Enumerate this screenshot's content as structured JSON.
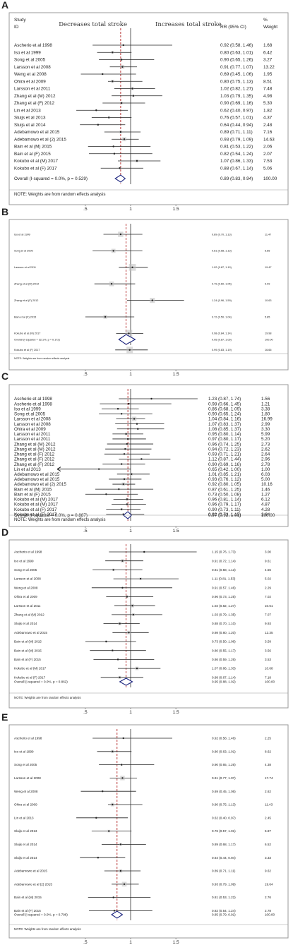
{
  "chart_data": [
    {
      "type": "forest",
      "panel_label": "A",
      "header": {
        "study": "Study",
        "id": "ID",
        "left": "Decreases total stroke",
        "right": "Increases total stroke",
        "rr": "RR (95% CI)",
        "pct": "%",
        "weight": "Weight"
      },
      "xlim": [
        0.22,
        1.78
      ],
      "xticks": [
        ".5",
        "1",
        "1.5"
      ],
      "xtick_values": [
        0.5,
        1,
        1.5
      ],
      "overall_line": 0.89,
      "rows": [
        {
          "study": "Ascherio et al 1998",
          "rr": 0.92,
          "lo": 0.58,
          "hi": 1.46,
          "ci": "0.92 (0.58, 1.46)",
          "weight": "1.68"
        },
        {
          "study": "Iso et al 1999",
          "rr": 0.8,
          "lo": 0.63,
          "hi": 1.01,
          "ci": "0.80 (0.63, 1.01)",
          "weight": "6.42"
        },
        {
          "study": "Song et al 2005",
          "rr": 0.9,
          "lo": 0.65,
          "hi": 1.26,
          "ci": "0.90 (0.65, 1.26)",
          "weight": "3.27"
        },
        {
          "study": "Larsson et al 2008",
          "rr": 0.91,
          "lo": 0.77,
          "hi": 1.07,
          "ci": "0.91 (0.77, 1.07)",
          "weight": "13.22"
        },
        {
          "study": "Weng et al 2008",
          "rr": 0.69,
          "lo": 0.45,
          "hi": 1.06,
          "ci": "0.69 (0.45, 1.06)",
          "weight": "1.95"
        },
        {
          "study": "Ohira et al 2009",
          "rr": 0.8,
          "lo": 0.75,
          "hi": 1.13,
          "ci": "0.80 (0.75, 1.13)",
          "weight": "8.51"
        },
        {
          "study": "Larsson et al 2011",
          "rr": 1.02,
          "lo": 0.82,
          "hi": 1.27,
          "ci": "1.02 (0.82, 1.27)",
          "weight": "7.48"
        },
        {
          "study": "Zhang et al (M) 2012",
          "rr": 1.03,
          "lo": 0.79,
          "hi": 1.35,
          "ci": "1.03 (0.79, 1.35)",
          "weight": "4.98"
        },
        {
          "study": "Zhang et al (F) 2012",
          "rr": 0.9,
          "lo": 0.69,
          "hi": 1.16,
          "ci": "0.90 (0.69, 1.16)",
          "weight": "5.30"
        },
        {
          "study": "Lin et al 2013",
          "rr": 0.62,
          "lo": 0.4,
          "hi": 0.97,
          "ci": "0.62 (0.40, 0.97)",
          "weight": "1.82"
        },
        {
          "study": "Sluijs et al 2013",
          "rr": 0.76,
          "lo": 0.57,
          "hi": 1.01,
          "ci": "0.76 (0.57, 1.01)",
          "weight": "4.37"
        },
        {
          "study": "Sluijs et al 2014",
          "rr": 0.64,
          "lo": 0.44,
          "hi": 0.94,
          "ci": "0.64 (0.44, 0.94)",
          "weight": "2.48"
        },
        {
          "study": "Adebamowo et al 2015",
          "rr": 0.89,
          "lo": 0.71,
          "hi": 1.11,
          "ci": "0.89 (0.71, 1.11)",
          "weight": "7.16"
        },
        {
          "study": "Adebamowo et al (2) 2015",
          "rr": 0.93,
          "lo": 0.79,
          "hi": 1.09,
          "ci": "0.93 (0.79, 1.09)",
          "weight": "14.63"
        },
        {
          "study": "Bain et al (M) 2015",
          "rr": 0.81,
          "lo": 0.53,
          "hi": 1.22,
          "ci": "0.81 (0.53, 1.22)",
          "weight": "2.06"
        },
        {
          "study": "Bain et al (F) 2015",
          "rr": 0.82,
          "lo": 0.54,
          "hi": 1.24,
          "ci": "0.82 (0.54, 1.24)",
          "weight": "2.07"
        },
        {
          "study": "Kokubo et al (M) 2017",
          "rr": 1.07,
          "lo": 0.86,
          "hi": 1.33,
          "ci": "1.07 (0.86, 1.33)",
          "weight": "7.53"
        },
        {
          "study": "Kokubo et al (F) 2017",
          "rr": 0.88,
          "lo": 0.67,
          "hi": 1.14,
          "ci": "0.88 (0.67, 1.14)",
          "weight": "5.06"
        }
      ],
      "overall": {
        "label": "Overall  (I-squared = 0.0%, p = 0.529)",
        "rr": 0.89,
        "lo": 0.83,
        "hi": 0.94,
        "ci": "0.89 (0.83, 0.94)",
        "weight": "100.00"
      },
      "note": "NOTE: Weights are from random effects analysis"
    },
    {
      "type": "forest",
      "panel_label": "B",
      "xlim": [
        0.22,
        1.78
      ],
      "xticks": [
        ".5",
        "1",
        "1.5"
      ],
      "xtick_values": [
        0.5,
        1,
        1.5
      ],
      "overall_line": 0.95,
      "rows": [
        {
          "study": "Iso et al 1999",
          "rr": 0.89,
          "lo": 0.7,
          "hi": 1.13,
          "ci": "0.89 (0.70, 1.13)",
          "weight": "11.47"
        },
        {
          "study": "Song et al 2005",
          "rr": 0.81,
          "lo": 0.58,
          "hi": 1.13,
          "ci": "0.81 (0.58, 1.13)",
          "weight": "6.85"
        },
        {
          "study": "Larsson et al 2011",
          "rr": 1.02,
          "lo": 0.87,
          "hi": 1.19,
          "ci": "1.02 (0.87, 1.19)",
          "weight": "19.47"
        },
        {
          "study": "Zhang et al (M) 2012",
          "rr": 0.79,
          "lo": 0.6,
          "hi": 1.05,
          "ci": "0.79 (0.60, 1.05)",
          "weight": "9.09"
        },
        {
          "study": "Zhang et al (F) 2012",
          "rr": 1.24,
          "lo": 0.96,
          "hi": 1.59,
          "ci": "1.24 (0.96, 1.59)",
          "weight": "10.63"
        },
        {
          "study": "Bain et al (F) 2015",
          "rr": 0.72,
          "lo": 0.5,
          "hi": 1.04,
          "ci": "0.72 (0.50, 1.04)",
          "weight": "5.85"
        },
        {
          "study": "Kokubo et al (M) 2017",
          "rr": 0.98,
          "lo": 0.84,
          "hi": 1.14,
          "ci": "0.98 (0.84, 1.14)",
          "weight": "19.98"
        },
        {
          "study": "Kokubo et al (F) 2017",
          "rr": 0.99,
          "lo": 0.83,
          "hi": 1.19,
          "ci": "0.99 (0.83, 1.19)",
          "weight": "16.66"
        }
      ],
      "overall": {
        "label": "Overall  (I-squared = 32.1%, p = 0.172)",
        "rr": 0.95,
        "lo": 0.87,
        "hi": 1.05,
        "ci": "0.95 (0.87, 1.05)",
        "weight": "100.00"
      },
      "note": "NOTE: Weights are from random effects analysis"
    },
    {
      "type": "forest",
      "panel_label": "C",
      "xlim": [
        0.22,
        1.78
      ],
      "xticks": [
        ".5",
        "1",
        "1.5"
      ],
      "xtick_values": [
        0.5,
        1,
        1.5
      ],
      "overall_line": 0.97,
      "rows": [
        {
          "study": "Ascherio et al 1998",
          "rr": 1.23,
          "lo": 0.87,
          "hi": 1.74,
          "ci": "1.23 (0.87, 1.74)",
          "weight": "1.56"
        },
        {
          "study": "Ascherio et al 1998",
          "rr": 0.98,
          "lo": 0.66,
          "hi": 1.45,
          "ci": "0.98 (0.66, 1.45)",
          "weight": "1.21"
        },
        {
          "study": "Iso et al 1999",
          "rr": 0.86,
          "lo": 0.68,
          "hi": 1.09,
          "ci": "0.86 (0.68, 1.09)",
          "weight": "3.38"
        },
        {
          "study": "Song et al 2005",
          "rr": 0.9,
          "lo": 0.65,
          "hi": 1.24,
          "ci": "0.90 (0.65, 1.24)",
          "weight": "1.80"
        },
        {
          "study": "Larsson et al 2008",
          "rr": 1.04,
          "lo": 0.84,
          "hi": 1.16,
          "ci": "1.04 (0.84, 1.16)",
          "weight": "16.99"
        },
        {
          "study": "Larsson et al 2008",
          "rr": 1.07,
          "lo": 0.83,
          "hi": 1.37,
          "ci": "1.07 (0.83, 1.37)",
          "weight": "2.99"
        },
        {
          "study": "Ohira et al 2009",
          "rr": 1.08,
          "lo": 0.85,
          "hi": 1.37,
          "ci": "1.08 (0.85, 1.37)",
          "weight": "3.30"
        },
        {
          "study": "Larsson et al 2011",
          "rr": 0.95,
          "lo": 0.8,
          "hi": 1.14,
          "ci": "0.95 (0.80, 1.14)",
          "weight": "5.99"
        },
        {
          "study": "Larsson et al 2011",
          "rr": 0.97,
          "lo": 0.8,
          "hi": 1.17,
          "ci": "0.97 (0.80, 1.17)",
          "weight": "5.20"
        },
        {
          "study": "Zhang et al (M) 2012",
          "rr": 0.96,
          "lo": 0.74,
          "hi": 1.25,
          "ci": "0.96 (0.74, 1.25)",
          "weight": "2.73"
        },
        {
          "study": "Zhang et al (M) 2012",
          "rr": 0.94,
          "lo": 0.72,
          "hi": 1.23,
          "ci": "0.94 (0.72, 1.23)",
          "weight": "2.62"
        },
        {
          "study": "Zhang et al (F) 2012",
          "rr": 0.93,
          "lo": 0.71,
          "hi": 1.21,
          "ci": "0.93 (0.71, 1.21)",
          "weight": "2.64"
        },
        {
          "study": "Zhang et al (F) 2012",
          "rr": 1.12,
          "lo": 0.87,
          "hi": 1.44,
          "ci": "1.12 (0.87, 1.44)",
          "weight": "2.96"
        },
        {
          "study": "Zhang et al (F) 2012",
          "rr": 0.9,
          "lo": 0.69,
          "hi": 1.16,
          "ci": "0.90 (0.69, 1.16)",
          "weight": "2.78"
        },
        {
          "study": "Lin et al 2013",
          "rr": 0.65,
          "lo": 0.42,
          "hi": 1.0,
          "ci": "0.65 (0.42, 1.00)",
          "weight": "1.00",
          "arrow_left": true
        },
        {
          "study": "Adebamowo et al 2015",
          "rr": 1.01,
          "lo": 0.85,
          "hi": 1.21,
          "ci": "1.01 (0.85, 1.21)",
          "weight": "6.03"
        },
        {
          "study": "Adebamowo et al 2015",
          "rr": 0.93,
          "lo": 0.76,
          "hi": 1.12,
          "ci": "0.93 (0.76, 1.12)",
          "weight": "5.00"
        },
        {
          "study": "Adebamowo et al (2) 2015",
          "rr": 0.92,
          "lo": 0.8,
          "hi": 1.05,
          "ci": "0.92 (0.80, 1.05)",
          "weight": "10.16"
        },
        {
          "study": "Bain et al (M) 2015",
          "rr": 0.87,
          "lo": 0.61,
          "hi": 1.25,
          "ci": "0.87 (0.61, 1.25)",
          "weight": "1.46"
        },
        {
          "study": "Bain et al (F) 2015",
          "rr": 0.73,
          "lo": 0.5,
          "hi": 1.08,
          "ci": "0.73 (0.50, 1.08)",
          "weight": "1.27"
        },
        {
          "study": "Kokubo et al (M) 2017",
          "rr": 0.96,
          "lo": 0.81,
          "hi": 1.14,
          "ci": "0.96 (0.81, 1.14)",
          "weight": "6.12"
        },
        {
          "study": "Kokubo et al (M) 2017",
          "rr": 0.96,
          "lo": 0.79,
          "hi": 1.17,
          "ci": "0.96 (0.79, 1.17)",
          "weight": "4.87"
        },
        {
          "study": "Kokubo et al (F) 2017",
          "rr": 0.9,
          "lo": 0.73,
          "hi": 1.11,
          "ci": "0.90 (0.73, 1.11)",
          "weight": "4.28"
        },
        {
          "study": "Kokubo et al (F) 2017",
          "rr": 0.92,
          "lo": 0.73,
          "hi": 1.15,
          "ci": "0.92 (0.73, 1.15)",
          "weight": "3.64"
        }
      ],
      "overall": {
        "label": "Overall  (I-squared = 0.0%, p = 0.887)",
        "rr": 0.97,
        "lo": 0.92,
        "hi": 1.01,
        "ci": "0.97 (0.92, 1.01)",
        "weight": "100.00"
      },
      "note": "NOTE: Weights are from random effects analysis"
    },
    {
      "type": "forest",
      "panel_label": "D",
      "xlim": [
        0.22,
        1.78
      ],
      "xticks": [
        ".5",
        "1",
        "1.5"
      ],
      "xtick_values": [
        0.5,
        1,
        1.5
      ],
      "overall_line": 0.95,
      "rows": [
        {
          "study": "Ascherio et al 1998",
          "rr": 1.15,
          "lo": 0.76,
          "hi": 1.73,
          "ci": "1.15 (0.76, 1.73)",
          "weight": "3.00"
        },
        {
          "study": "Iso et al 1999",
          "rr": 0.91,
          "lo": 0.72,
          "hi": 1.14,
          "ci": "0.91 (0.72, 1.14)",
          "weight": "9.61"
        },
        {
          "study": "Song et al 2005",
          "rr": 0.81,
          "lo": 0.58,
          "hi": 1.13,
          "ci": "0.81 (0.58, 1.13)",
          "weight": "4.56"
        },
        {
          "study": "Larsson et al 2008",
          "rr": 1.11,
          "lo": 0.81,
          "hi": 1.53,
          "ci": "1.11 (0.81, 1.53)",
          "weight": "5.02"
        },
        {
          "study": "Weng et al 2008",
          "rr": 0.91,
          "lo": 0.57,
          "hi": 1.46,
          "ci": "0.91 (0.57, 1.46)",
          "weight": "2.29"
        },
        {
          "study": "Ohira et al 2009",
          "rr": 0.96,
          "lo": 0.73,
          "hi": 1.25,
          "ci": "0.96 (0.73, 1.25)",
          "weight": "7.02"
        },
        {
          "study": "Larsson et al 2011",
          "rr": 1.02,
          "lo": 0.82,
          "hi": 1.27,
          "ci": "1.02 (0.82, 1.27)",
          "weight": "10.61"
        },
        {
          "study": "Zhang et al (M) 2012",
          "rr": 1.03,
          "lo": 0.79,
          "hi": 1.35,
          "ci": "1.03 (0.79, 1.35)",
          "weight": "7.07"
        },
        {
          "study": "Sluijs et al 2014",
          "rr": 0.88,
          "lo": 0.7,
          "hi": 1.1,
          "ci": "0.88 (0.70, 1.10)",
          "weight": "9.93"
        },
        {
          "study": "Adebamowo et al 2015",
          "rr": 0.98,
          "lo": 0.8,
          "hi": 1.2,
          "ci": "0.98 (0.80, 1.20)",
          "weight": "12.35"
        },
        {
          "study": "Bain et al (M) 2015",
          "rr": 0.73,
          "lo": 0.5,
          "hi": 1.06,
          "ci": "0.73 (0.50, 1.06)",
          "weight": "3.59"
        },
        {
          "study": "Bain et al (M) 2015",
          "rr": 0.8,
          "lo": 0.55,
          "hi": 1.17,
          "ci": "0.80 (0.55, 1.17)",
          "weight": "3.56"
        },
        {
          "study": "Bain et al (F) 2015",
          "rr": 0.86,
          "lo": 0.59,
          "hi": 1.26,
          "ci": "0.86 (0.59, 1.26)",
          "weight": "3.53"
        },
        {
          "study": "Kokubo et al (M) 2017",
          "rr": 1.07,
          "lo": 0.86,
          "hi": 1.33,
          "ci": "1.07 (0.86, 1.33)",
          "weight": "10.68"
        },
        {
          "study": "Kokubo et al (F) 2017",
          "rr": 0.88,
          "lo": 0.67,
          "hi": 1.14,
          "ci": "0.88 (0.67, 1.14)",
          "weight": "7.18"
        }
      ],
      "overall": {
        "label": "Overall  (I-squared = 0.0%, p = 0.862)",
        "rr": 0.95,
        "lo": 0.88,
        "hi": 1.02,
        "ci": "0.95 (0.88, 1.02)",
        "weight": "100.00"
      },
      "note": "NOTE: Weights are from random effects analysis"
    },
    {
      "type": "forest",
      "panel_label": "E",
      "xlim": [
        0.22,
        1.78
      ],
      "xticks": [
        ".5",
        "1",
        "1.5"
      ],
      "xtick_values": [
        0.5,
        1,
        1.5
      ],
      "overall_line": 0.85,
      "rows": [
        {
          "study": "Ascherio et al 1998",
          "rr": 0.92,
          "lo": 0.58,
          "hi": 1.46,
          "ci": "0.92 (0.58, 1.46)",
          "weight": "2.25"
        },
        {
          "study": "Iso et al 1999",
          "rr": 0.8,
          "lo": 0.63,
          "hi": 1.01,
          "ci": "0.80 (0.63, 1.01)",
          "weight": "8.62"
        },
        {
          "study": "Song et al 2005",
          "rr": 0.9,
          "lo": 0.65,
          "hi": 1.26,
          "ci": "0.90 (0.65, 1.26)",
          "weight": "4.38"
        },
        {
          "study": "Larsson et al 2008",
          "rr": 0.91,
          "lo": 0.77,
          "hi": 1.07,
          "ci": "0.91 (0.77, 1.07)",
          "weight": "17.74"
        },
        {
          "study": "Weng et al 2008",
          "rr": 0.69,
          "lo": 0.45,
          "hi": 1.06,
          "ci": "0.69 (0.45, 1.06)",
          "weight": "2.62"
        },
        {
          "study": "Ohira et al 2009",
          "rr": 0.8,
          "lo": 0.75,
          "hi": 1.13,
          "ci": "0.80 (0.75, 1.13)",
          "weight": "11.43"
        },
        {
          "study": "Lin et al 2013",
          "rr": 0.62,
          "lo": 0.4,
          "hi": 0.97,
          "ci": "0.62 (0.40, 0.97)",
          "weight": "2.45"
        },
        {
          "study": "Sluijs et al 2013",
          "rr": 0.76,
          "lo": 0.57,
          "hi": 1.01,
          "ci": "0.76 (0.57, 1.01)",
          "weight": "5.87"
        },
        {
          "study": "Sluijs et al 2014",
          "rr": 0.89,
          "lo": 0.68,
          "hi": 1.17,
          "ci": "0.89 (0.68, 1.17)",
          "weight": "6.52"
        },
        {
          "study": "Sluijs et al 2014",
          "rr": 0.64,
          "lo": 0.44,
          "hi": 0.94,
          "ci": "0.64 (0.44, 0.94)",
          "weight": "3.33"
        },
        {
          "study": "Adebamowo et al 2015",
          "rr": 0.89,
          "lo": 0.71,
          "hi": 1.11,
          "ci": "0.89 (0.71, 1.11)",
          "weight": "9.62"
        },
        {
          "study": "Adebamowo et al (2) 2015",
          "rr": 0.93,
          "lo": 0.79,
          "hi": 1.09,
          "ci": "0.93 (0.79, 1.09)",
          "weight": "19.64"
        },
        {
          "study": "Bain et al (M) 2015",
          "rr": 0.81,
          "lo": 0.53,
          "hi": 1.22,
          "ci": "0.81 (0.53, 1.22)",
          "weight": "2.76"
        },
        {
          "study": "Bain et al (F) 2015",
          "rr": 0.82,
          "lo": 0.54,
          "hi": 1.24,
          "ci": "0.82 (0.54, 1.24)",
          "weight": "2.78"
        }
      ],
      "overall": {
        "label": "Overall  (I-squared = 0.0%, p = 0.796)",
        "rr": 0.85,
        "lo": 0.79,
        "hi": 0.91,
        "ci": "0.85 (0.79, 0.91)",
        "weight": "100.00"
      },
      "note": "NOTE: Weights are from random effects analysis"
    }
  ],
  "colors": {
    "null_line": "#333333",
    "overall_line": "#b22222",
    "diamond": "#1a237e",
    "marker": "#222222",
    "border": "#9a9a9a",
    "box": "#bdbdbd"
  }
}
